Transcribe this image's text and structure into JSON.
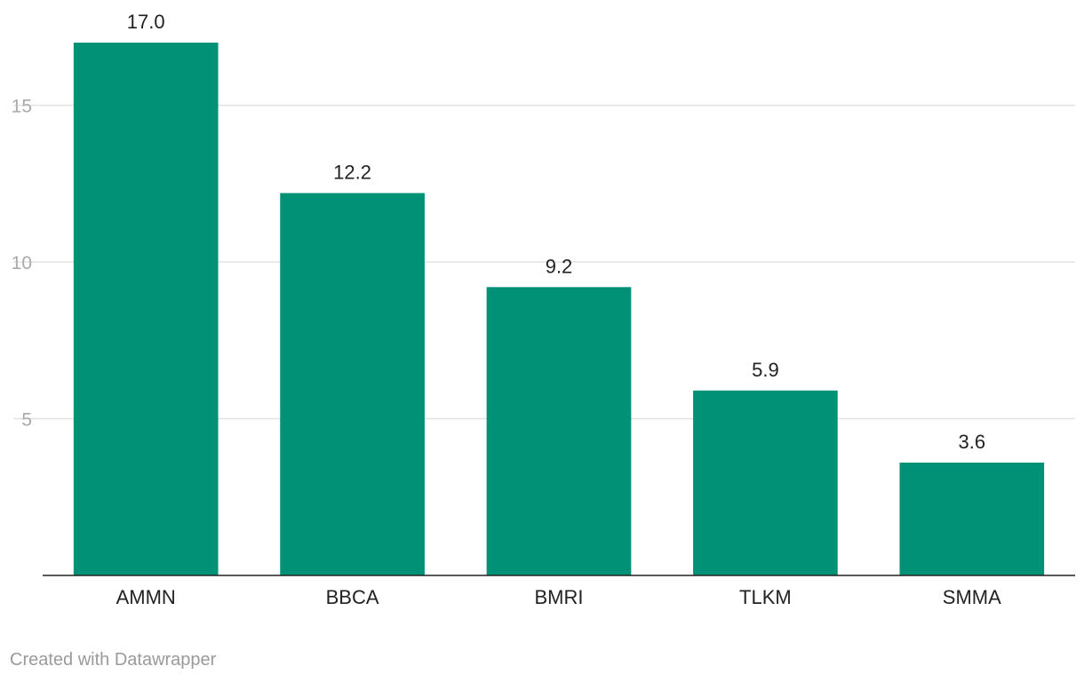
{
  "chart_data": {
    "type": "bar",
    "categories": [
      "AMMN",
      "BBCA",
      "BMRI",
      "TLKM",
      "SMMA"
    ],
    "values": [
      17.0,
      12.2,
      9.2,
      5.9,
      3.6
    ],
    "value_labels": [
      "17.0",
      "12.2",
      "9.2",
      "5.9",
      "3.6"
    ],
    "title": "",
    "xlabel": "",
    "ylabel": "",
    "ylim": [
      0,
      17
    ],
    "yticks": [
      5,
      10,
      15
    ],
    "grid": true,
    "bar_color": "#009177"
  },
  "footer": {
    "credit": "Created with Datawrapper"
  }
}
